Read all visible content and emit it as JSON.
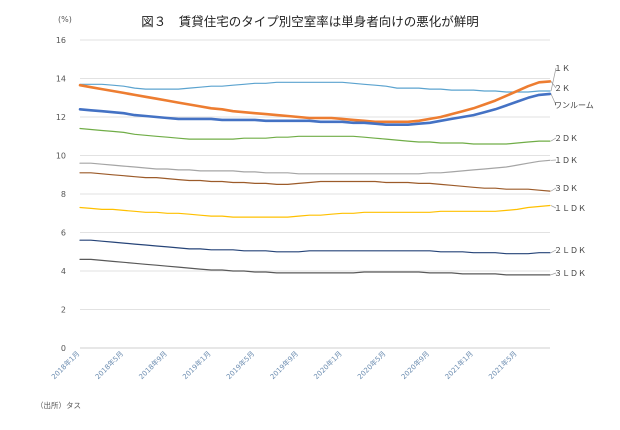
{
  "chart_data": {
    "type": "line",
    "title": "図３　賃貸住宅のタイプ別空室率は単身者向けの悪化が鮮明",
    "unit_label": "(%)",
    "source_note": "（出所）タス",
    "ylim": [
      0,
      16
    ],
    "y_ticks": [
      "0",
      "2",
      "4",
      "6",
      "8",
      "10",
      "12",
      "14",
      "16"
    ],
    "x": [
      "2018年1月",
      "2018年2月",
      "2018年3月",
      "2018年4月",
      "2018年5月",
      "2018年6月",
      "2018年7月",
      "2018年8月",
      "2018年9月",
      "2018年10月",
      "2018年11月",
      "2018年12月",
      "2019年1月",
      "2019年2月",
      "2019年3月",
      "2019年4月",
      "2019年5月",
      "2019年6月",
      "2019年7月",
      "2019年8月",
      "2019年9月",
      "2019年10月",
      "2019年11月",
      "2019年12月",
      "2020年1月",
      "2020年2月",
      "2020年3月",
      "2020年4月",
      "2020年5月",
      "2020年6月",
      "2020年7月",
      "2020年8月",
      "2020年9月",
      "2020年10月",
      "2020年11月",
      "2020年12月",
      "2021年1月",
      "2021年2月",
      "2021年3月",
      "2021年4月",
      "2021年5月",
      "2021年6月",
      "2021年7月",
      "2021年8月"
    ],
    "x_ticks": [
      "2018年1月",
      "2018年5月",
      "2018年9月",
      "2019年1月",
      "2019年5月",
      "2019年9月",
      "2020年1月",
      "2020年5月",
      "2020年9月",
      "2021年1月",
      "2021年5月"
    ],
    "grid": true,
    "legend": "labels-right",
    "series": [
      {
        "name": "１Ｋ",
        "color": "#5ba3cf",
        "width": 1.2,
        "values": [
          13.7,
          13.7,
          13.7,
          13.65,
          13.6,
          13.5,
          13.45,
          13.45,
          13.45,
          13.45,
          13.5,
          13.55,
          13.6,
          13.6,
          13.65,
          13.7,
          13.75,
          13.75,
          13.8,
          13.8,
          13.8,
          13.8,
          13.8,
          13.8,
          13.8,
          13.75,
          13.7,
          13.65,
          13.6,
          13.5,
          13.5,
          13.5,
          13.45,
          13.45,
          13.4,
          13.4,
          13.4,
          13.35,
          13.35,
          13.3,
          13.3,
          13.3,
          13.35,
          13.35
        ]
      },
      {
        "name": "２Ｋ",
        "color": "#ed7d31",
        "width": 2.6,
        "values": [
          13.65,
          13.55,
          13.45,
          13.35,
          13.25,
          13.15,
          13.05,
          12.95,
          12.85,
          12.75,
          12.65,
          12.55,
          12.45,
          12.4,
          12.3,
          12.25,
          12.2,
          12.15,
          12.1,
          12.05,
          12.0,
          11.95,
          11.95,
          11.95,
          11.9,
          11.85,
          11.8,
          11.75,
          11.75,
          11.75,
          11.75,
          11.8,
          11.9,
          12.0,
          12.15,
          12.3,
          12.45,
          12.65,
          12.85,
          13.1,
          13.35,
          13.6,
          13.8,
          13.85
        ]
      },
      {
        "name": "ワンルーム",
        "color": "#4472c4",
        "width": 2.6,
        "values": [
          12.4,
          12.35,
          12.3,
          12.25,
          12.2,
          12.1,
          12.05,
          12.0,
          11.95,
          11.9,
          11.9,
          11.9,
          11.9,
          11.85,
          11.85,
          11.85,
          11.85,
          11.8,
          11.8,
          11.8,
          11.8,
          11.8,
          11.75,
          11.75,
          11.75,
          11.7,
          11.7,
          11.65,
          11.6,
          11.6,
          11.6,
          11.65,
          11.7,
          11.8,
          11.9,
          12.0,
          12.1,
          12.25,
          12.4,
          12.6,
          12.8,
          13.0,
          13.15,
          13.2
        ]
      },
      {
        "name": "２ＤＫ",
        "color": "#70ad47",
        "width": 1.2,
        "values": [
          11.4,
          11.35,
          11.3,
          11.25,
          11.2,
          11.1,
          11.05,
          11.0,
          10.95,
          10.9,
          10.85,
          10.85,
          10.85,
          10.85,
          10.85,
          10.9,
          10.9,
          10.9,
          10.95,
          10.95,
          11.0,
          11.0,
          11.0,
          11.0,
          11.0,
          11.0,
          10.95,
          10.9,
          10.85,
          10.8,
          10.75,
          10.7,
          10.7,
          10.65,
          10.65,
          10.65,
          10.6,
          10.6,
          10.6,
          10.6,
          10.65,
          10.7,
          10.75,
          10.75
        ]
      },
      {
        "name": "１ＤＫ",
        "color": "#a5a5a5",
        "width": 1.2,
        "values": [
          9.6,
          9.6,
          9.55,
          9.5,
          9.45,
          9.4,
          9.35,
          9.3,
          9.3,
          9.25,
          9.25,
          9.2,
          9.2,
          9.2,
          9.2,
          9.15,
          9.15,
          9.1,
          9.1,
          9.1,
          9.05,
          9.05,
          9.05,
          9.05,
          9.05,
          9.05,
          9.05,
          9.05,
          9.05,
          9.05,
          9.05,
          9.05,
          9.1,
          9.1,
          9.15,
          9.2,
          9.25,
          9.3,
          9.35,
          9.4,
          9.5,
          9.6,
          9.7,
          9.75
        ]
      },
      {
        "name": "３ＤＫ",
        "color": "#9c5b2a",
        "width": 1.2,
        "values": [
          9.1,
          9.1,
          9.05,
          9.0,
          8.95,
          8.9,
          8.85,
          8.85,
          8.8,
          8.75,
          8.7,
          8.7,
          8.65,
          8.65,
          8.6,
          8.6,
          8.55,
          8.55,
          8.5,
          8.5,
          8.55,
          8.6,
          8.65,
          8.65,
          8.65,
          8.65,
          8.65,
          8.65,
          8.6,
          8.6,
          8.6,
          8.55,
          8.55,
          8.5,
          8.45,
          8.4,
          8.35,
          8.3,
          8.3,
          8.25,
          8.25,
          8.25,
          8.2,
          8.15
        ]
      },
      {
        "name": "１ＬＤＫ",
        "color": "#ffc000",
        "width": 1.2,
        "values": [
          7.3,
          7.25,
          7.2,
          7.2,
          7.15,
          7.1,
          7.05,
          7.05,
          7.0,
          7.0,
          6.95,
          6.9,
          6.85,
          6.85,
          6.8,
          6.8,
          6.8,
          6.8,
          6.8,
          6.8,
          6.85,
          6.9,
          6.9,
          6.95,
          7.0,
          7.0,
          7.05,
          7.05,
          7.05,
          7.05,
          7.05,
          7.05,
          7.05,
          7.1,
          7.1,
          7.1,
          7.1,
          7.1,
          7.1,
          7.15,
          7.2,
          7.3,
          7.35,
          7.4
        ]
      },
      {
        "name": "２ＬＤＫ",
        "color": "#264478",
        "width": 1.2,
        "values": [
          5.6,
          5.6,
          5.55,
          5.5,
          5.45,
          5.4,
          5.35,
          5.3,
          5.25,
          5.2,
          5.15,
          5.15,
          5.1,
          5.1,
          5.1,
          5.05,
          5.05,
          5.05,
          5.0,
          5.0,
          5.0,
          5.05,
          5.05,
          5.05,
          5.05,
          5.05,
          5.05,
          5.05,
          5.05,
          5.05,
          5.05,
          5.05,
          5.05,
          5.0,
          5.0,
          5.0,
          4.95,
          4.95,
          4.95,
          4.9,
          4.9,
          4.9,
          4.95,
          4.95
        ]
      },
      {
        "name": "３ＬＤＫ",
        "color": "#595959",
        "width": 1.2,
        "values": [
          4.6,
          4.6,
          4.55,
          4.5,
          4.45,
          4.4,
          4.35,
          4.3,
          4.25,
          4.2,
          4.15,
          4.1,
          4.05,
          4.05,
          4.0,
          4.0,
          3.95,
          3.95,
          3.9,
          3.9,
          3.9,
          3.9,
          3.9,
          3.9,
          3.9,
          3.9,
          3.95,
          3.95,
          3.95,
          3.95,
          3.95,
          3.95,
          3.9,
          3.9,
          3.9,
          3.85,
          3.85,
          3.85,
          3.85,
          3.8,
          3.8,
          3.8,
          3.8,
          3.8
        ]
      }
    ]
  }
}
